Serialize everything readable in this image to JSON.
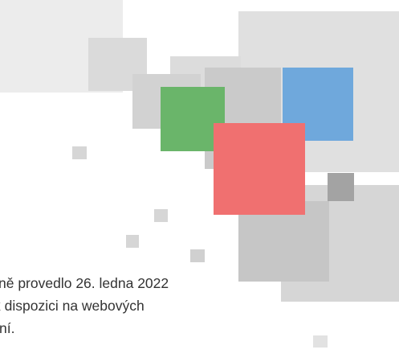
{
  "text": {
    "lines": [
      "ně provedlo 26. ledna 2022",
      "k dispozici na webových",
      "ní."
    ]
  }
}
